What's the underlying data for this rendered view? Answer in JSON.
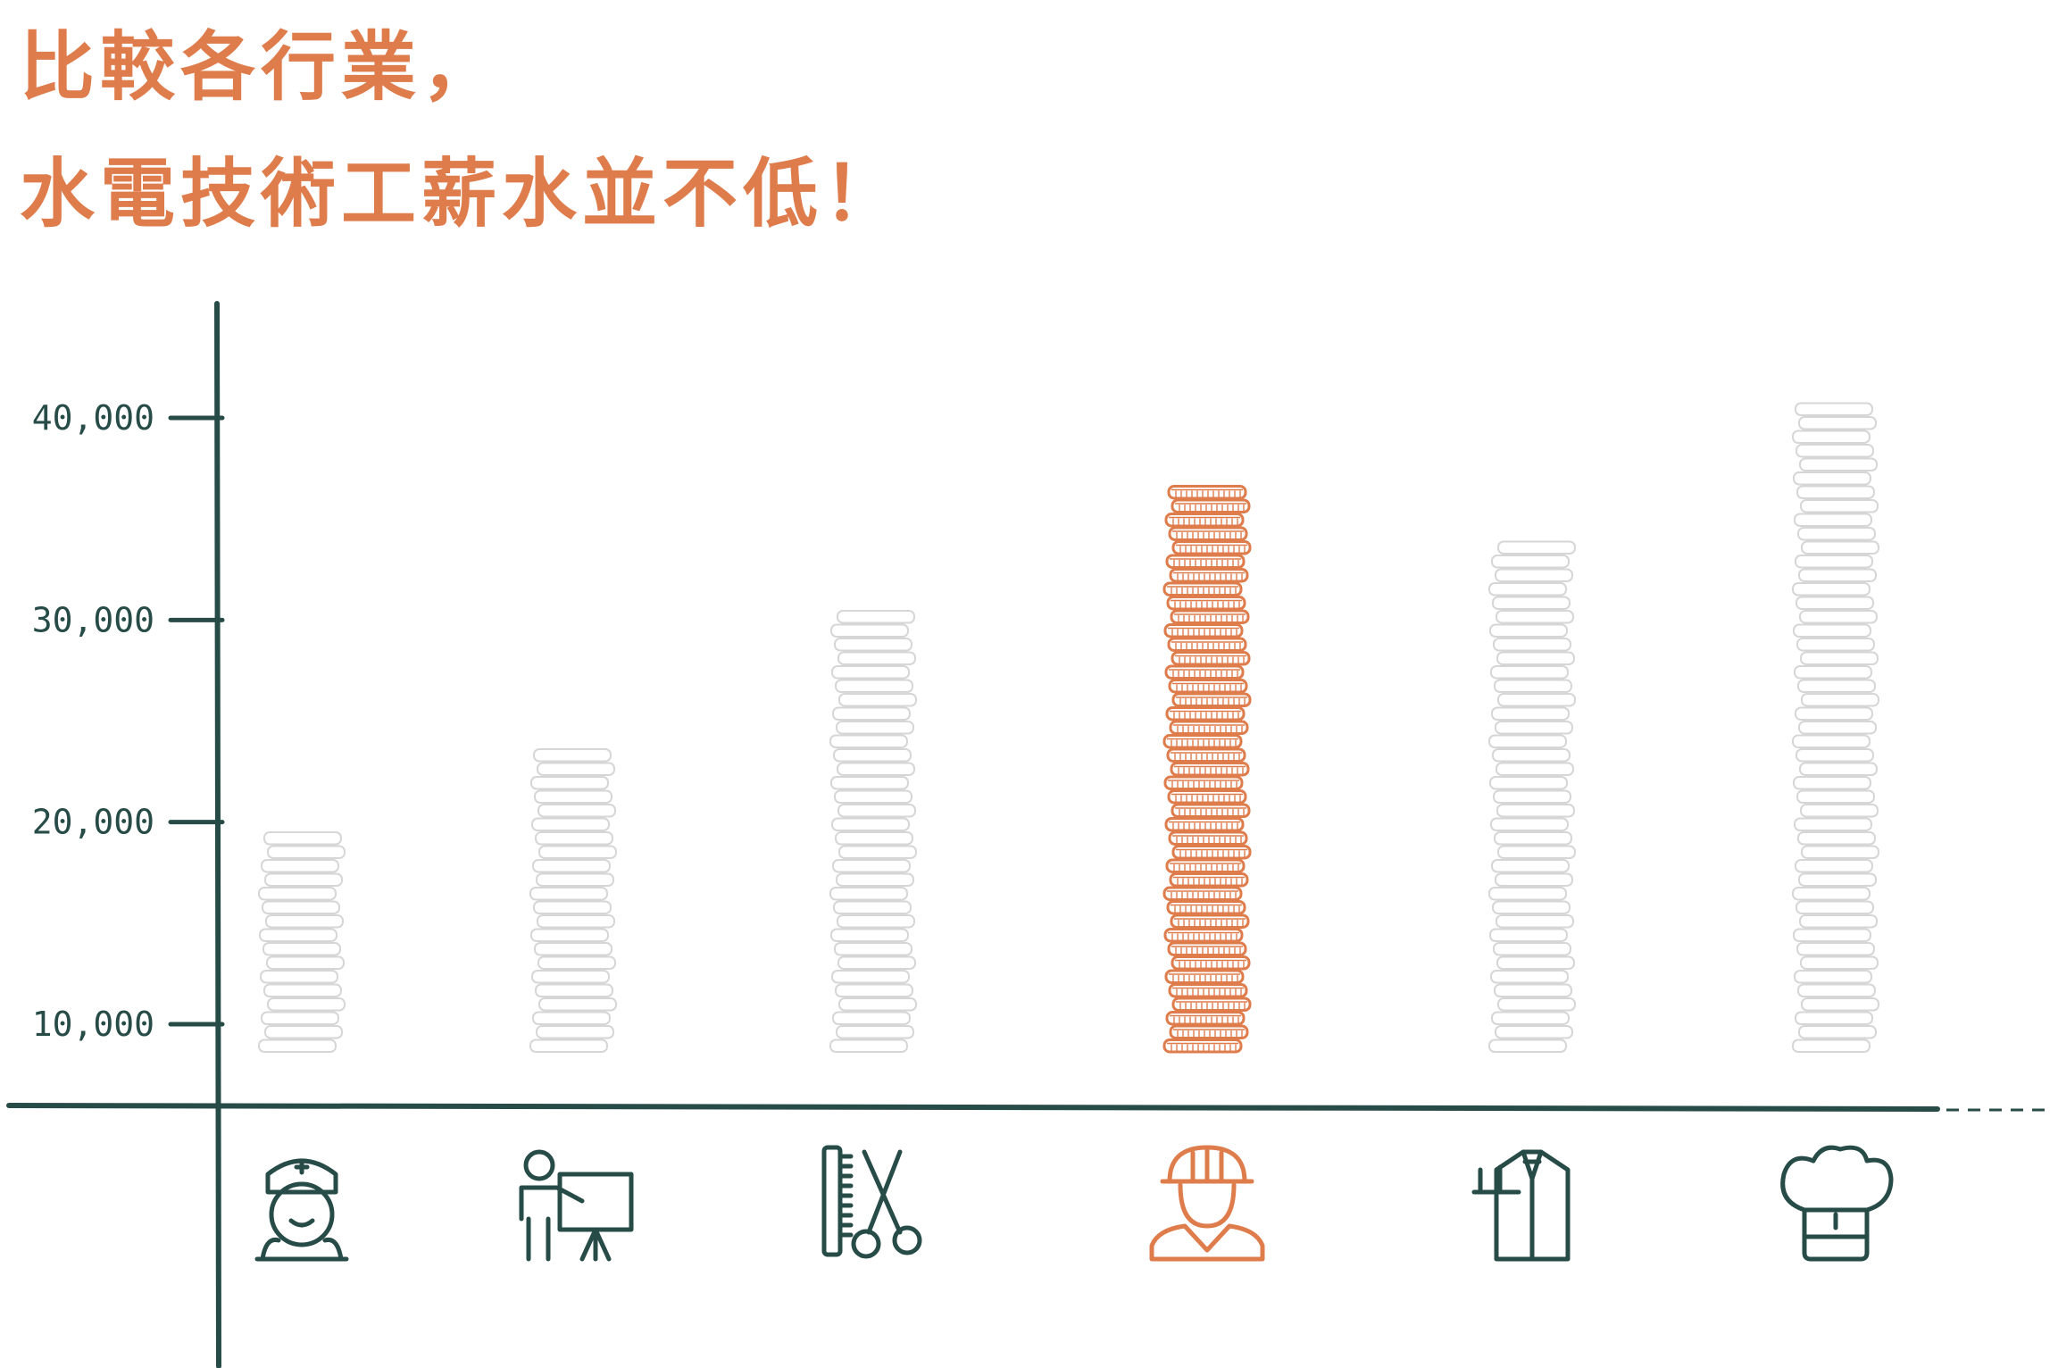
{
  "colors": {
    "accent": "#df7c4c",
    "axis": "#274c48",
    "coin_faint": "#d6d6d6"
  },
  "title": {
    "line1": "比較各行業，",
    "line2": "水電技術工薪水並不低！"
  },
  "chart_data": {
    "type": "bar",
    "style": "stacked-coin pictogram",
    "categories": [
      "nurse",
      "teacher",
      "hairdresser",
      "electrician",
      "waiter",
      "chef"
    ],
    "category_icons": [
      "nurse-icon",
      "teacher-icon",
      "hairdresser-icon",
      "electrician-icon",
      "waiter-icon",
      "chef-icon"
    ],
    "values": [
      19500,
      23500,
      30500,
      36500,
      34000,
      40500
    ],
    "highlight": "electrician",
    "yticks": [
      10000,
      20000,
      30000,
      40000
    ],
    "ytick_labels": [
      "10,000",
      "20,000",
      "30,000",
      "40,000"
    ],
    "ylim": [
      7500,
      47500
    ],
    "grid": false,
    "legend": "none"
  }
}
